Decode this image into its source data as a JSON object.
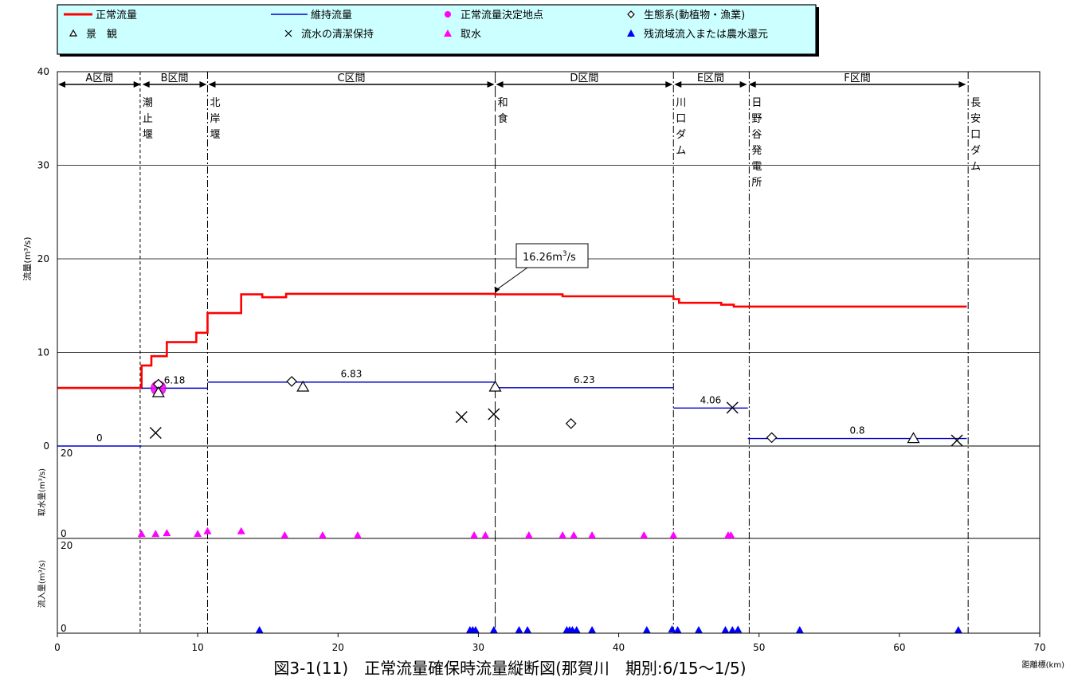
{
  "legend": {
    "items": [
      {
        "label": "正常流量",
        "symbol": "red-line",
        "color": "#ff0000"
      },
      {
        "label": "維持流量",
        "symbol": "blue-line",
        "color": "#0000cc"
      },
      {
        "label": "正常流量決定地点",
        "symbol": "magenta-circle",
        "color": "#ff00ff"
      },
      {
        "label": "生態系(動植物・漁業)",
        "symbol": "diamond-open",
        "color": "#000000"
      },
      {
        "label": "景　観",
        "symbol": "triangle-open",
        "color": "#000000"
      },
      {
        "label": "流水の清潔保持",
        "symbol": "cross",
        "color": "#000000"
      },
      {
        "label": "取水",
        "symbol": "triangle-magenta",
        "color": "#ff00ff"
      },
      {
        "label": "残流域流入または農水還元",
        "symbol": "triangle-blue",
        "color": "#0000ff"
      }
    ]
  },
  "chart_data": {
    "type": "line",
    "xlabel": "距離標(km)",
    "x_ticks": [
      "0",
      "10",
      "20",
      "30",
      "40",
      "50",
      "60",
      "70"
    ],
    "xlim": [
      0,
      70
    ],
    "grid": true,
    "panels": [
      {
        "name": "main",
        "ylabel": "流量(m³/s)",
        "ylim": [
          0,
          40
        ],
        "y_ticks": [
          "0",
          "10",
          "20",
          "30",
          "40"
        ],
        "series": [
          {
            "name": "正常流量",
            "color": "#ff0000",
            "x": [
              0,
              6,
              6,
              6.7,
              6.7,
              7.8,
              7.8,
              9.9,
              9.9,
              10.7,
              10.7,
              13.1,
              13.1,
              14.6,
              14.6,
              16.3,
              16.3,
              31.2,
              31.2,
              36,
              36,
              43.9,
              43.9,
              44.3,
              44.3,
              47.3,
              47.3,
              48.2,
              48.2,
              49.2,
              49.2,
              64.8
            ],
            "y": [
              6.2,
              6.2,
              8.6,
              8.6,
              9.6,
              9.6,
              11.1,
              11.1,
              12.1,
              12.1,
              14.2,
              14.2,
              16.2,
              16.2,
              15.9,
              15.9,
              16.26,
              16.26,
              16.2,
              16.2,
              16.0,
              16.0,
              15.7,
              15.7,
              15.3,
              15.3,
              15.1,
              15.1,
              14.9,
              14.9,
              14.9,
              14.9
            ]
          },
          {
            "name": "維持流量",
            "color": "#0000cc",
            "segments": [
              {
                "x": [
                  0,
                  6
                ],
                "y": 0,
                "label": "0"
              },
              {
                "x": [
                  6,
                  10.7
                ],
                "y": 6.18,
                "label": "6.18"
              },
              {
                "x": [
                  10.7,
                  31.2
                ],
                "y": 6.83,
                "label": "6.83"
              },
              {
                "x": [
                  31.2,
                  43.9
                ],
                "y": 6.23,
                "label": "6.23"
              },
              {
                "x": [
                  43.9,
                  49.2
                ],
                "y": 4.06,
                "label": "4.06"
              },
              {
                "x": [
                  49.2,
                  64.8
                ],
                "y": 0.8,
                "label": "0.8"
              }
            ]
          },
          {
            "name": "正常流量決定地点",
            "points": [
              [
                7.2,
                6.18
              ]
            ]
          },
          {
            "name": "生態系(動植物・漁業)",
            "points": [
              [
                7.2,
                6.6
              ],
              [
                16.7,
                6.9
              ],
              [
                36.6,
                2.4
              ],
              [
                50.9,
                0.9
              ]
            ]
          },
          {
            "name": "景　観",
            "points": [
              [
                7.2,
                5.7
              ],
              [
                17.5,
                6.3
              ],
              [
                31.2,
                6.3
              ],
              [
                61,
                0.8
              ]
            ]
          },
          {
            "name": "流水の清潔保持",
            "points": [
              [
                7,
                1.4
              ],
              [
                28.8,
                3.1
              ],
              [
                31.1,
                3.4
              ],
              [
                48.1,
                4.1
              ],
              [
                64.1,
                0.6
              ]
            ]
          }
        ],
        "annotation": {
          "text_main": "16.26m",
          "text_sup": "3",
          "text_tail": "/s",
          "x": 31.2,
          "y": 16.26
        }
      },
      {
        "name": "intake",
        "ylabel": "取水量(m³/s)",
        "y_ticks": [
          "0",
          "20"
        ],
        "ylim": [
          0,
          20
        ],
        "series": [
          {
            "name": "取水",
            "color": "#ff00ff",
            "x": [
              6,
              7,
              7.8,
              10,
              10.7,
              13.1,
              16.2,
              18.9,
              21.4,
              29.7,
              30.5,
              33.6,
              36,
              36.8,
              38.1,
              41.8,
              43.9,
              47.8,
              48
            ],
            "y": [
              0.3,
              0.3,
              0.5,
              0.3,
              0.9,
              0.9,
              0,
              0,
              0,
              0,
              0,
              0,
              0,
              0,
              0,
              0,
              0,
              0,
              0
            ]
          }
        ]
      },
      {
        "name": "inflow",
        "ylabel": "流入量(m³/s)",
        "y_ticks": [
          "0",
          "20"
        ],
        "ylim": [
          0,
          20
        ],
        "series": [
          {
            "name": "残流域流入または農水還元",
            "color": "#0000ff",
            "x": [
              14.4,
              29.4,
              29.6,
              29.8,
              31.1,
              32.9,
              33.5,
              36.3,
              36.5,
              36.7,
              37,
              38.1,
              42,
              43.8,
              44.2,
              45.7,
              47.6,
              48.1,
              48.5,
              52.9,
              64.2
            ],
            "y": [
              0,
              0,
              0,
              0,
              0,
              0,
              0,
              0,
              0,
              0,
              0,
              0,
              0,
              0.15,
              0,
              0,
              0,
              0,
              0.1,
              0,
              0
            ]
          }
        ]
      }
    ],
    "sections": [
      {
        "label": "A区間",
        "x": [
          0,
          6
        ]
      },
      {
        "label": "B区間",
        "x": [
          6,
          10.7
        ]
      },
      {
        "label": "C区間",
        "x": [
          10.7,
          31.2
        ]
      },
      {
        "label": "D区間",
        "x": [
          31.2,
          43.9
        ]
      },
      {
        "label": "E区間",
        "x": [
          43.9,
          49.2
        ]
      },
      {
        "label": "F区間",
        "x": [
          49.2,
          64.8
        ]
      }
    ],
    "boundaries": [
      {
        "x": 5.9,
        "style": "dashed",
        "text": "潮止堰"
      },
      {
        "x": 10.7,
        "style": "dashdot",
        "text": "北岸堰"
      },
      {
        "x": 31.2,
        "style": "longdash",
        "text": "和食"
      },
      {
        "x": 43.9,
        "style": "dashdot",
        "text": "川口ダム"
      },
      {
        "x": 49.3,
        "style": "dashdot",
        "text": "日野谷発電所"
      },
      {
        "x": 64.9,
        "style": "dashdot",
        "text": "長安口ダム"
      }
    ],
    "caption": "図3-1(11)　正常流量確保時流量縦断図(那賀川　期別:6/15～1/5)"
  }
}
